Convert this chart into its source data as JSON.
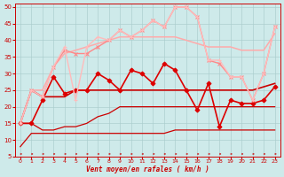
{
  "xlabel": "Vent moyen/en rafales ( km/h )",
  "xlim": [
    -0.5,
    23.5
  ],
  "ylim": [
    5,
    51
  ],
  "yticks": [
    5,
    10,
    15,
    20,
    25,
    30,
    35,
    40,
    45,
    50
  ],
  "xticks": [
    0,
    1,
    2,
    3,
    4,
    5,
    6,
    7,
    8,
    9,
    10,
    11,
    12,
    13,
    14,
    15,
    16,
    17,
    18,
    19,
    20,
    21,
    22,
    23
  ],
  "background_color": "#ceeaea",
  "grid_color": "#aacccc",
  "lines": [
    {
      "x": [
        0,
        1,
        2,
        3,
        4,
        5,
        6,
        7,
        8,
        9,
        10,
        11,
        12,
        13,
        14,
        15,
        16,
        17,
        18,
        19,
        20,
        21,
        22,
        23
      ],
      "y": [
        8,
        12,
        12,
        12,
        12,
        12,
        12,
        12,
        12,
        12,
        12,
        12,
        12,
        12,
        13,
        13,
        13,
        13,
        13,
        13,
        13,
        13,
        13,
        13
      ],
      "color": "#cc0000",
      "lw": 0.9,
      "marker": null,
      "ms": 0
    },
    {
      "x": [
        0,
        1,
        2,
        3,
        4,
        5,
        6,
        7,
        8,
        9,
        10,
        11,
        12,
        13,
        14,
        15,
        16,
        17,
        18,
        19,
        20,
        21,
        22,
        23
      ],
      "y": [
        15,
        15,
        13,
        13,
        14,
        14,
        15,
        17,
        18,
        20,
        20,
        20,
        20,
        20,
        20,
        20,
        20,
        20,
        20,
        20,
        20,
        20,
        20,
        20
      ],
      "color": "#cc0000",
      "lw": 0.9,
      "marker": null,
      "ms": 0
    },
    {
      "x": [
        0,
        1,
        2,
        3,
        4,
        5,
        6,
        7,
        8,
        9,
        10,
        11,
        12,
        13,
        14,
        15,
        16,
        17,
        18,
        19,
        20,
        21,
        22,
        23
      ],
      "y": [
        15,
        25,
        23,
        23,
        23,
        25,
        25,
        25,
        25,
        25,
        25,
        25,
        25,
        25,
        25,
        25,
        25,
        25,
        25,
        25,
        25,
        25,
        26,
        27
      ],
      "color": "#cc0000",
      "lw": 1.2,
      "marker": null,
      "ms": 0
    },
    {
      "x": [
        0,
        1,
        2,
        3,
        4,
        5,
        6,
        7,
        8,
        9,
        10,
        11,
        12,
        13,
        14,
        15,
        16,
        17,
        18,
        19,
        20,
        21,
        22,
        23
      ],
      "y": [
        15,
        25,
        25,
        32,
        36,
        37,
        38,
        39,
        40,
        41,
        41,
        41,
        41,
        41,
        41,
        40,
        39,
        38,
        38,
        38,
        37,
        37,
        37,
        42
      ],
      "color": "#ffaaaa",
      "lw": 1.1,
      "marker": null,
      "ms": 0
    },
    {
      "x": [
        0,
        1,
        2,
        3,
        4,
        5,
        6,
        7,
        8,
        9,
        10,
        11,
        12,
        13,
        14,
        15,
        16,
        17,
        18,
        19,
        20,
        21,
        22,
        23
      ],
      "y": [
        15,
        15,
        22,
        29,
        24,
        25,
        25,
        30,
        28,
        25,
        31,
        30,
        27,
        33,
        31,
        25,
        19,
        27,
        14,
        22,
        21,
        21,
        22,
        26
      ],
      "color": "#dd0000",
      "lw": 1.2,
      "marker": "D",
      "ms": 2.5
    },
    {
      "x": [
        0,
        1,
        2,
        3,
        4,
        5,
        6,
        7,
        8,
        9,
        10,
        11,
        12,
        13,
        14,
        15,
        16,
        17,
        18,
        19,
        20,
        21,
        22,
        23
      ],
      "y": [
        15,
        25,
        23,
        32,
        37,
        36,
        36,
        38,
        40,
        43,
        41,
        43,
        46,
        44,
        50,
        50,
        47,
        34,
        33,
        29,
        29,
        22,
        30,
        44
      ],
      "color": "#ff8888",
      "lw": 1.0,
      "marker": "x",
      "ms": 3
    },
    {
      "x": [
        0,
        1,
        2,
        3,
        4,
        5,
        6,
        7,
        8,
        9,
        10,
        11,
        12,
        13,
        14,
        15,
        16,
        17,
        18,
        19,
        20,
        21,
        22,
        23
      ],
      "y": [
        15,
        25,
        23,
        32,
        38,
        22,
        38,
        41,
        40,
        43,
        41,
        43,
        46,
        44,
        50,
        50,
        47,
        34,
        34,
        29,
        29,
        22,
        30,
        44
      ],
      "color": "#ffbbbb",
      "lw": 1.0,
      "marker": "+",
      "ms": 3
    }
  ]
}
